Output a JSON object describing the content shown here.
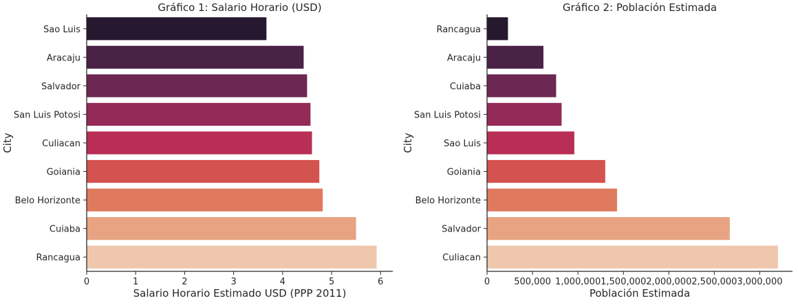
{
  "chart_data": [
    {
      "type": "bar",
      "orientation": "horizontal",
      "title": "Gráfico 1: Salario Horario (USD)",
      "xlabel": "Salario Horario Estimado USD (PPP 2011)",
      "ylabel": "City",
      "categories": [
        "Sao Luis",
        "Aracaju",
        "Salvador",
        "San Luis Potosi",
        "Culiacan",
        "Goiania",
        "Belo Horizonte",
        "Cuiaba",
        "Rancagua"
      ],
      "values": [
        3.67,
        4.43,
        4.5,
        4.57,
        4.6,
        4.75,
        4.82,
        5.5,
        5.92
      ],
      "colors": [
        "#26182f",
        "#4a2147",
        "#6c2752",
        "#932a58",
        "#b92e55",
        "#d4524f",
        "#e07a5f",
        "#e8a382",
        "#efc7ad"
      ],
      "xlim": [
        0,
        6.25
      ],
      "xticks": [
        0,
        1,
        2,
        3,
        4,
        5,
        6
      ],
      "xtick_labels": [
        "0",
        "1",
        "2",
        "3",
        "4",
        "5",
        "6"
      ],
      "grid": false
    },
    {
      "type": "bar",
      "orientation": "horizontal",
      "title": "Gráfico 2: Población Estimada",
      "xlabel": "Población Estimada",
      "ylabel": "City",
      "categories": [
        "Rancagua",
        "Aracaju",
        "Cuiaba",
        "San Luis Potosi",
        "Sao Luis",
        "Goiania",
        "Belo Horizonte",
        "Salvador",
        "Culiacan"
      ],
      "values": [
        230000,
        620000,
        760000,
        820000,
        960000,
        1300000,
        1430000,
        2670000,
        3200000
      ],
      "colors": [
        "#26182f",
        "#4a2147",
        "#6c2752",
        "#932a58",
        "#b92e55",
        "#d4524f",
        "#e07a5f",
        "#e8a382",
        "#efc7ad"
      ],
      "xlim": [
        0,
        3360000
      ],
      "xticks": [
        0,
        500000,
        1000000,
        1500000,
        2000000,
        2500000,
        3000000
      ],
      "xtick_labels": [
        "0",
        "500,000",
        "1,000,000",
        "1,500,000",
        "2,000,000",
        "2,500,000",
        "3,000,000"
      ],
      "grid": false
    }
  ]
}
